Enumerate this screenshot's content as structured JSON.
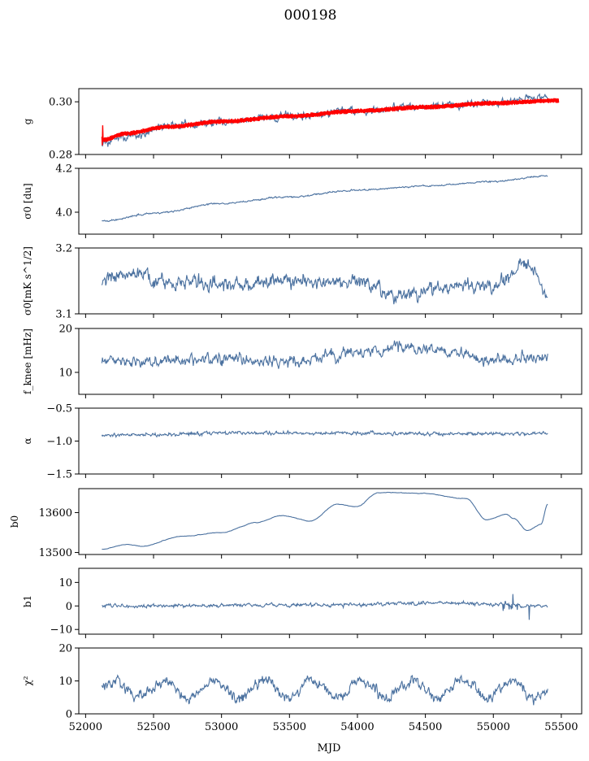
{
  "figure": {
    "title": "000198",
    "xlabel": "MJD",
    "xlim": [
      51950,
      55650
    ],
    "xticks": [
      52000,
      52500,
      53000,
      53500,
      54000,
      54500,
      55000,
      55500
    ],
    "xtick_labels": [
      "52000",
      "52500",
      "53000",
      "53500",
      "54000",
      "54500",
      "55000",
      "55500"
    ]
  },
  "colors": {
    "series": "#4c72a0",
    "fit": "#ff0000",
    "axis": "#000000"
  },
  "chart_data": [
    {
      "type": "line",
      "ylabel": "g",
      "ylim": [
        0.28,
        0.305
      ],
      "yticks": [
        0.28,
        0.3
      ],
      "ytick_labels": [
        "0.28",
        "0.30"
      ],
      "x_range": [
        52120,
        55400
      ],
      "fit_x_range": [
        52120,
        55480
      ],
      "keypoints": [
        [
          52120,
          0.284
        ],
        [
          52300,
          0.287
        ],
        [
          52600,
          0.2905
        ],
        [
          53000,
          0.2925
        ],
        [
          53500,
          0.2945
        ],
        [
          54000,
          0.2965
        ],
        [
          54500,
          0.298
        ],
        [
          55000,
          0.2995
        ],
        [
          55400,
          0.3015
        ]
      ],
      "fit_keypoints": [
        [
          52120,
          0.2855
        ],
        [
          52300,
          0.288
        ],
        [
          52600,
          0.2905
        ],
        [
          53000,
          0.2925
        ],
        [
          53500,
          0.2945
        ],
        [
          54000,
          0.2965
        ],
        [
          54500,
          0.298
        ],
        [
          55000,
          0.2995
        ],
        [
          55480,
          0.3005
        ]
      ],
      "noise": 0.0012,
      "fit_noise": 0.0008,
      "series": [
        {
          "values": "fluctuating series following keypoints"
        },
        {
          "values": "red fit following fit_keypoints"
        }
      ]
    },
    {
      "type": "line",
      "ylabel": "σ0 [du]",
      "ylim": [
        3.9,
        4.2
      ],
      "yticks": [
        4.0,
        4.2
      ],
      "ytick_labels": [
        "4.0",
        "4.2"
      ],
      "x_range": [
        52120,
        55400
      ],
      "keypoints": [
        [
          52120,
          3.96
        ],
        [
          52500,
          3.995
        ],
        [
          53000,
          4.04
        ],
        [
          53500,
          4.07
        ],
        [
          54000,
          4.1
        ],
        [
          54500,
          4.12
        ],
        [
          55000,
          4.14
        ],
        [
          55400,
          4.165
        ]
      ],
      "noise": 0.003
    },
    {
      "type": "line",
      "ylabel": "σ0[mK s^1/2]",
      "ylim": [
        3.1,
        3.2
      ],
      "yticks": [
        3.1,
        3.2
      ],
      "ytick_labels": [
        "3.1",
        "3.2"
      ],
      "x_range": [
        52120,
        55400
      ],
      "keypoints": [
        [
          52120,
          3.15
        ],
        [
          52300,
          3.165
        ],
        [
          52600,
          3.148
        ],
        [
          53000,
          3.145
        ],
        [
          53500,
          3.15
        ],
        [
          54000,
          3.148
        ],
        [
          54300,
          3.128
        ],
        [
          54700,
          3.14
        ],
        [
          55000,
          3.14
        ],
        [
          55250,
          3.18
        ],
        [
          55400,
          3.13
        ]
      ],
      "noise": 0.009
    },
    {
      "type": "line",
      "ylabel": "f_knee [mHz]",
      "ylim": [
        5,
        20
      ],
      "yticks": [
        10,
        20
      ],
      "ytick_labels": [
        "10",
        "20"
      ],
      "x_range": [
        52120,
        55400
      ],
      "keypoints": [
        [
          52120,
          12.5
        ],
        [
          52500,
          12.5
        ],
        [
          53000,
          13
        ],
        [
          53500,
          12.5
        ],
        [
          54000,
          14.5
        ],
        [
          54300,
          16
        ],
        [
          54700,
          14.5
        ],
        [
          55000,
          12.5
        ],
        [
          55400,
          13.5
        ]
      ],
      "noise": 1.1
    },
    {
      "type": "line",
      "ylabel": "α",
      "ylim": [
        -1.5,
        -0.5
      ],
      "yticks": [
        -1.5,
        -1.0,
        -0.5
      ],
      "ytick_labels": [
        "−1.5",
        "−1.0",
        "−0.5"
      ],
      "x_range": [
        52120,
        55400
      ],
      "keypoints": [
        [
          52120,
          -0.92
        ],
        [
          52500,
          -0.9
        ],
        [
          53000,
          -0.88
        ],
        [
          54000,
          -0.88
        ],
        [
          55000,
          -0.89
        ],
        [
          55400,
          -0.88
        ]
      ],
      "noise": 0.022
    },
    {
      "type": "line",
      "ylabel": "b0",
      "ylim": [
        13495,
        13660
      ],
      "yticks": [
        13500,
        13600
      ],
      "ytick_labels": [
        "13500",
        "13600"
      ],
      "x_range": [
        52120,
        55400
      ],
      "keypoints": [
        [
          52120,
          13508
        ],
        [
          52300,
          13520
        ],
        [
          52400,
          13515
        ],
        [
          52700,
          13540
        ],
        [
          53000,
          13550
        ],
        [
          53250,
          13575
        ],
        [
          53450,
          13592
        ],
        [
          53650,
          13580
        ],
        [
          53850,
          13620
        ],
        [
          54000,
          13615
        ],
        [
          54150,
          13650
        ],
        [
          54500,
          13648
        ],
        [
          54800,
          13635
        ],
        [
          54950,
          13582
        ],
        [
          55100,
          13595
        ],
        [
          55150,
          13585
        ],
        [
          55250,
          13555
        ],
        [
          55350,
          13570
        ],
        [
          55400,
          13620
        ]
      ],
      "noise": 1.5,
      "smooth": true
    },
    {
      "type": "line",
      "ylabel": "b1",
      "ylim": [
        -12,
        16
      ],
      "yticks": [
        -10,
        0,
        10
      ],
      "ytick_labels": [
        "−10",
        "0",
        "10"
      ],
      "x_range": [
        52120,
        55400
      ],
      "keypoints": [
        [
          52120,
          0
        ],
        [
          54000,
          0.5
        ],
        [
          54600,
          1.5
        ],
        [
          55000,
          0.5
        ],
        [
          55400,
          0
        ]
      ],
      "noise": 0.6,
      "spike_region": [
        55050,
        55400
      ],
      "spike_scale": 7
    },
    {
      "type": "line",
      "ylabel": "χ²",
      "ylim": [
        0,
        20
      ],
      "yticks": [
        0,
        10,
        20
      ],
      "ytick_labels": [
        "0",
        "10",
        "20"
      ],
      "x_range": [
        52120,
        55400
      ],
      "mean": 7.5,
      "amplitude": 2.5,
      "period": 365,
      "noise": 1.4
    }
  ]
}
